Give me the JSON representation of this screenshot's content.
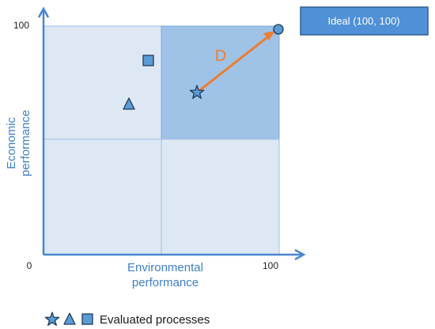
{
  "y_axis": {
    "title_line1": "Economic",
    "title_line2": "performance",
    "tick_max": "100"
  },
  "x_axis": {
    "title_line1": "Environmental",
    "title_line2": "performance",
    "tick_max": "100"
  },
  "origin_label": "0",
  "ideal_box": {
    "label": "Ideal (100, 100)"
  },
  "distance_label": "D",
  "legend": {
    "label": "Evaluated processes"
  },
  "colors": {
    "axis": "#4a86d0",
    "quadrant_light": "#dde8f4",
    "quadrant_highlight": "#9fc2e7",
    "marker_fill": "#5b9bd5",
    "marker_stroke": "#1f3c5a",
    "arrow": "#ed7d31",
    "ideal_box_fill": "#4f90d6",
    "ideal_box_border": "#2e5f92"
  },
  "icons": {
    "processes": [
      "star-icon",
      "triangle-icon",
      "square-icon"
    ],
    "ideal_point": "circle-icon"
  }
}
